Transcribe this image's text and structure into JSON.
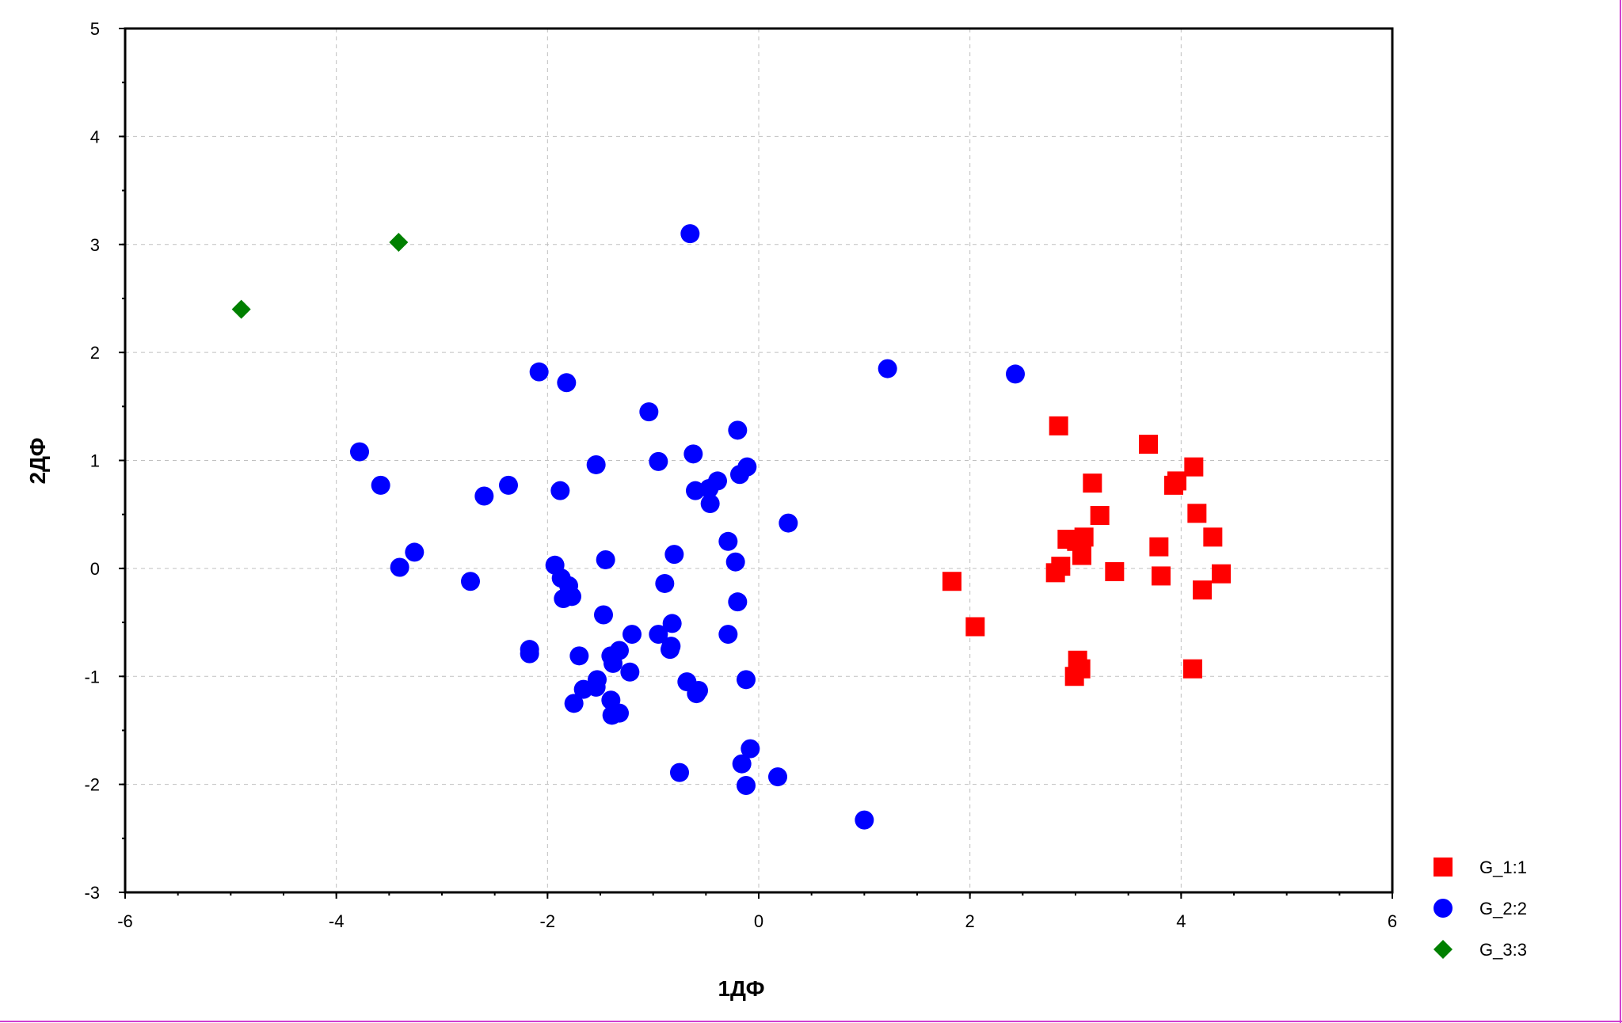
{
  "chart_data": {
    "type": "scatter",
    "xlabel": "1ДФ",
    "ylabel": "2ДФ",
    "xlim": [
      -6,
      6
    ],
    "ylim": [
      -3,
      5
    ],
    "xticks": [
      "-6",
      "-4",
      "-2",
      "0",
      "2",
      "4",
      "6"
    ],
    "yticks": [
      "-3",
      "-2",
      "-1",
      "0",
      "1",
      "2",
      "3",
      "4",
      "5"
    ],
    "grid": true,
    "legend_position": "bottom-right",
    "series": [
      {
        "name": "G_1:1",
        "marker": "square",
        "color": "#ff0000",
        "points": [
          [
            1.83,
            -0.12
          ],
          [
            2.05,
            -0.54
          ],
          [
            2.84,
            1.32
          ],
          [
            2.81,
            -0.04
          ],
          [
            2.86,
            0.02
          ],
          [
            2.92,
            0.27
          ],
          [
            3.01,
            0.25
          ],
          [
            3.06,
            0.12
          ],
          [
            3.08,
            0.29
          ],
          [
            3.02,
            -0.85
          ],
          [
            3.05,
            -0.93
          ],
          [
            2.99,
            -1.0
          ],
          [
            3.16,
            0.79
          ],
          [
            3.23,
            0.49
          ],
          [
            3.37,
            -0.03
          ],
          [
            3.69,
            1.15
          ],
          [
            3.79,
            0.2
          ],
          [
            3.81,
            -0.07
          ],
          [
            3.93,
            0.77
          ],
          [
            3.96,
            0.81
          ],
          [
            4.12,
            0.94
          ],
          [
            4.15,
            0.51
          ],
          [
            4.11,
            -0.93
          ],
          [
            4.2,
            -0.2
          ],
          [
            4.3,
            0.29
          ],
          [
            4.38,
            -0.05
          ]
        ]
      },
      {
        "name": "G_2:2",
        "marker": "circle",
        "color": "#0000ff",
        "points": [
          [
            -0.65,
            3.1
          ],
          [
            1.22,
            1.85
          ],
          [
            2.43,
            1.8
          ],
          [
            -2.08,
            1.82
          ],
          [
            -1.82,
            1.72
          ],
          [
            -1.04,
            1.45
          ],
          [
            -3.78,
            1.08
          ],
          [
            -3.58,
            0.77
          ],
          [
            -2.6,
            0.67
          ],
          [
            -2.37,
            0.77
          ],
          [
            -1.88,
            0.72
          ],
          [
            -1.54,
            0.96
          ],
          [
            -0.95,
            0.99
          ],
          [
            -0.62,
            1.06
          ],
          [
            -0.2,
            1.28
          ],
          [
            -0.18,
            0.87
          ],
          [
            -0.11,
            0.94
          ],
          [
            -0.6,
            0.72
          ],
          [
            -0.47,
            0.74
          ],
          [
            -0.39,
            0.81
          ],
          [
            -0.46,
            0.6
          ],
          [
            0.28,
            0.42
          ],
          [
            -0.29,
            0.25
          ],
          [
            -0.22,
            0.06
          ],
          [
            -0.8,
            0.13
          ],
          [
            -1.45,
            0.08
          ],
          [
            -1.93,
            0.03
          ],
          [
            -1.87,
            -0.09
          ],
          [
            -1.8,
            -0.16
          ],
          [
            -1.85,
            -0.28
          ],
          [
            -1.77,
            -0.26
          ],
          [
            -3.26,
            0.15
          ],
          [
            -3.4,
            0.01
          ],
          [
            -2.73,
            -0.12
          ],
          [
            -0.89,
            -0.14
          ],
          [
            -0.2,
            -0.31
          ],
          [
            -1.47,
            -0.43
          ],
          [
            -0.82,
            -0.51
          ],
          [
            -1.2,
            -0.61
          ],
          [
            -0.95,
            -0.61
          ],
          [
            -0.29,
            -0.61
          ],
          [
            -2.17,
            -0.75
          ],
          [
            -2.17,
            -0.79
          ],
          [
            -1.7,
            -0.81
          ],
          [
            -1.4,
            -0.81
          ],
          [
            -1.32,
            -0.76
          ],
          [
            -0.83,
            -0.72
          ],
          [
            -0.84,
            -0.75
          ],
          [
            -1.38,
            -0.88
          ],
          [
            -1.22,
            -0.96
          ],
          [
            -1.53,
            -1.03
          ],
          [
            -1.66,
            -1.12
          ],
          [
            -1.54,
            -1.1
          ],
          [
            -0.68,
            -1.05
          ],
          [
            -0.57,
            -1.13
          ],
          [
            -0.59,
            -1.16
          ],
          [
            -0.12,
            -1.03
          ],
          [
            -1.4,
            -1.22
          ],
          [
            -1.75,
            -1.25
          ],
          [
            -1.39,
            -1.36
          ],
          [
            -1.32,
            -1.34
          ],
          [
            -0.08,
            -1.67
          ],
          [
            -0.75,
            -1.89
          ],
          [
            -0.16,
            -1.81
          ],
          [
            0.18,
            -1.93
          ],
          [
            -0.12,
            -2.01
          ],
          [
            1.0,
            -2.33
          ]
        ]
      },
      {
        "name": "G_3:3",
        "marker": "diamond",
        "color": "#008000",
        "points": [
          [
            -4.9,
            2.4
          ],
          [
            -3.41,
            3.02
          ]
        ]
      }
    ]
  }
}
